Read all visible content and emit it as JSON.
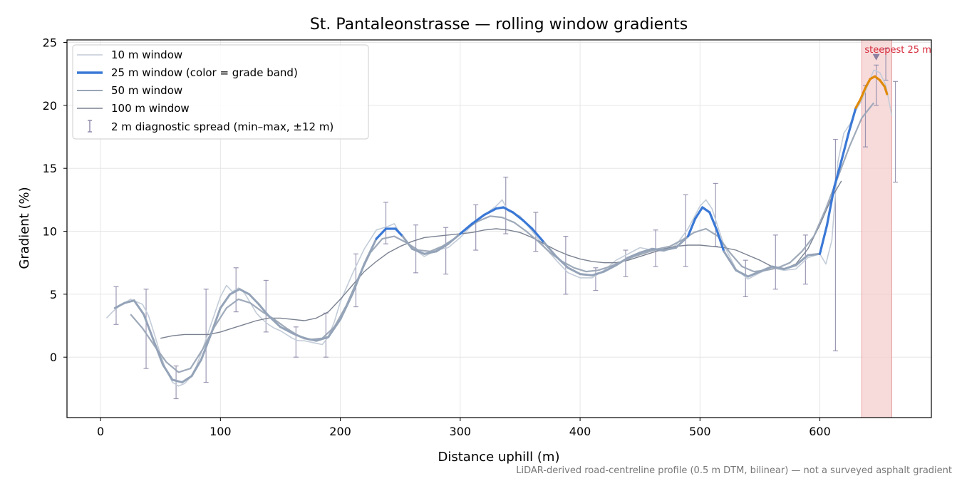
{
  "chart_data": {
    "type": "line",
    "title": "St. Pantaleonstrasse — rolling window gradients",
    "xlabel": "Distance uphill (m)",
    "ylabel": "Gradient (%)",
    "xlim": [
      -28,
      693
    ],
    "ylim": [
      -4.8,
      25.2
    ],
    "xticks": [
      0,
      100,
      200,
      300,
      400,
      500,
      600
    ],
    "yticks": [
      0,
      5,
      10,
      15,
      20,
      25
    ],
    "grid": true,
    "legend_position": "top-left",
    "footnote": "LiDAR-derived road-centreline profile (0.5 m DTM, bilinear) — not a surveyed asphalt gradient",
    "highlight": {
      "x_range": [
        635,
        660
      ],
      "label": "steepest 25 m",
      "marker_x": 647,
      "marker_y": 23.8,
      "color": "#f4cccc"
    },
    "grade_band_colors": {
      "low": "#94a3b8",
      "mid": "#3a78d6",
      "high": "#e08a0b"
    },
    "series": [
      {
        "name": "10 m window",
        "style": "light",
        "color": "#c3ccd8",
        "x": [
          5,
          10,
          15,
          20,
          25,
          30,
          35,
          40,
          45,
          50,
          55,
          60,
          65,
          70,
          75,
          80,
          85,
          90,
          95,
          100,
          105,
          110,
          115,
          120,
          125,
          130,
          135,
          140,
          145,
          150,
          155,
          160,
          165,
          170,
          175,
          180,
          185,
          190,
          195,
          200,
          210,
          220,
          230,
          240,
          245,
          250,
          260,
          270,
          280,
          290,
          300,
          310,
          320,
          330,
          335,
          340,
          350,
          360,
          370,
          380,
          390,
          400,
          410,
          420,
          430,
          440,
          450,
          460,
          470,
          480,
          490,
          500,
          505,
          510,
          520,
          530,
          540,
          550,
          560,
          570,
          580,
          590,
          600,
          605,
          610,
          615,
          620,
          625,
          630,
          635,
          640,
          645,
          650,
          655,
          660
        ],
        "values": [
          3.1,
          3.6,
          4.0,
          4.3,
          4.6,
          4.4,
          4.2,
          3.3,
          1.8,
          0.2,
          -1.1,
          -2.0,
          -2.3,
          -2.1,
          -1.6,
          -0.7,
          0.6,
          2.0,
          3.4,
          4.8,
          5.7,
          5.2,
          5.5,
          5.1,
          4.3,
          3.5,
          3.0,
          2.6,
          2.3,
          2.1,
          1.8,
          1.5,
          1.3,
          1.3,
          1.2,
          1.1,
          1.0,
          1.6,
          2.8,
          4.4,
          6.6,
          8.6,
          10.1,
          10.4,
          10.6,
          9.8,
          8.7,
          8.0,
          8.5,
          8.7,
          9.5,
          10.5,
          11.3,
          12.0,
          12.5,
          11.6,
          11.2,
          10.0,
          8.8,
          7.7,
          6.7,
          6.3,
          6.3,
          6.9,
          7.7,
          8.2,
          8.7,
          8.5,
          8.4,
          8.9,
          10.2,
          12.0,
          12.5,
          11.8,
          8.9,
          7.0,
          6.2,
          6.7,
          7.1,
          6.9,
          7.0,
          7.9,
          8.2,
          7.4,
          9.3,
          15.5,
          17.8,
          18.5,
          19.6,
          20.4,
          21.6,
          22.8,
          22.6,
          21.6,
          19.2
        ]
      },
      {
        "name": "25 m window (color = grade band)",
        "style": "main",
        "color": "#3a78d6",
        "x": [
          12,
          20,
          28,
          36,
          44,
          52,
          60,
          68,
          76,
          84,
          92,
          100,
          108,
          116,
          124,
          132,
          140,
          150,
          160,
          170,
          180,
          190,
          200,
          210,
          220,
          230,
          238,
          246,
          252,
          260,
          270,
          280,
          290,
          300,
          310,
          320,
          330,
          336,
          344,
          352,
          360,
          370,
          380,
          390,
          400,
          410,
          420,
          430,
          440,
          450,
          460,
          470,
          480,
          490,
          496,
          502,
          508,
          514,
          520,
          530,
          540,
          550,
          560,
          570,
          580,
          590,
          600,
          606,
          612,
          618,
          624,
          630,
          634,
          638,
          642,
          646,
          650,
          654,
          656
        ],
        "values": [
          3.9,
          4.3,
          4.5,
          3.4,
          1.4,
          -0.6,
          -1.8,
          -2.0,
          -1.5,
          -0.2,
          1.8,
          3.9,
          5.0,
          5.4,
          5.0,
          4.2,
          3.3,
          2.4,
          1.9,
          1.5,
          1.3,
          1.6,
          3.0,
          5.0,
          7.4,
          9.4,
          10.2,
          10.2,
          9.6,
          8.6,
          8.2,
          8.4,
          9.0,
          9.8,
          10.6,
          11.3,
          11.8,
          11.9,
          11.5,
          10.9,
          10.2,
          9.1,
          8.0,
          7.1,
          6.6,
          6.5,
          6.8,
          7.3,
          7.9,
          8.3,
          8.6,
          8.5,
          8.7,
          9.6,
          11.0,
          11.9,
          11.5,
          10.1,
          8.4,
          6.9,
          6.4,
          6.8,
          7.2,
          7.0,
          7.3,
          8.1,
          8.2,
          10.5,
          13.5,
          15.6,
          17.8,
          19.8,
          20.5,
          21.4,
          22.1,
          22.3,
          22.0,
          21.5,
          20.9
        ]
      },
      {
        "name": "50 m window",
        "style": "medium",
        "color": "#9aa5b6",
        "x": [
          25,
          35,
          45,
          55,
          65,
          75,
          85,
          95,
          105,
          115,
          125,
          135,
          145,
          155,
          165,
          175,
          185,
          195,
          205,
          215,
          225,
          235,
          245,
          255,
          265,
          275,
          285,
          295,
          305,
          315,
          325,
          335,
          345,
          355,
          365,
          375,
          385,
          395,
          405,
          415,
          425,
          435,
          445,
          455,
          465,
          475,
          485,
          495,
          505,
          515,
          525,
          535,
          545,
          555,
          565,
          575,
          585,
          595,
          605,
          615,
          625,
          635,
          645
        ],
        "values": [
          3.4,
          2.3,
          0.9,
          -0.4,
          -1.2,
          -0.9,
          0.6,
          2.4,
          3.9,
          4.6,
          4.3,
          3.6,
          3.0,
          2.3,
          1.7,
          1.4,
          1.5,
          2.4,
          4.1,
          6.3,
          8.3,
          9.4,
          9.6,
          9.1,
          8.5,
          8.4,
          8.8,
          9.4,
          10.2,
          10.8,
          11.2,
          11.1,
          10.7,
          10.0,
          9.2,
          8.3,
          7.6,
          7.1,
          6.8,
          6.9,
          7.2,
          7.6,
          8.0,
          8.3,
          8.6,
          8.8,
          9.3,
          9.9,
          10.2,
          9.6,
          8.3,
          7.2,
          6.8,
          6.9,
          7.1,
          7.5,
          8.4,
          9.6,
          11.8,
          14.3,
          16.8,
          19.0,
          20.2
        ]
      },
      {
        "name": "100 m window",
        "style": "dark",
        "color": "#7a8291",
        "x": [
          50,
          60,
          70,
          80,
          90,
          100,
          110,
          120,
          130,
          140,
          150,
          160,
          170,
          180,
          190,
          200,
          210,
          220,
          230,
          240,
          250,
          260,
          270,
          280,
          290,
          300,
          310,
          320,
          330,
          340,
          350,
          360,
          370,
          380,
          390,
          400,
          410,
          420,
          430,
          440,
          450,
          460,
          470,
          480,
          490,
          500,
          510,
          520,
          530,
          540,
          550,
          560,
          570,
          580,
          590,
          600,
          610,
          618
        ],
        "values": [
          1.5,
          1.7,
          1.8,
          1.8,
          1.8,
          2.0,
          2.3,
          2.6,
          2.9,
          3.1,
          3.1,
          3.0,
          2.9,
          3.1,
          3.6,
          4.6,
          5.7,
          6.8,
          7.6,
          8.3,
          8.8,
          9.2,
          9.5,
          9.6,
          9.7,
          9.8,
          9.9,
          10.1,
          10.2,
          10.1,
          9.9,
          9.5,
          9.0,
          8.5,
          8.1,
          7.8,
          7.6,
          7.5,
          7.5,
          7.7,
          8.0,
          8.3,
          8.6,
          8.8,
          8.9,
          8.9,
          8.8,
          8.7,
          8.5,
          8.1,
          7.7,
          7.2,
          7.0,
          7.4,
          8.6,
          10.5,
          12.7,
          14.0
        ]
      }
    ],
    "error_bars": {
      "name": "2 m diagnostic spread (min–max, ±12 m)",
      "color": "#8b87a8",
      "x": [
        13,
        38,
        63,
        88,
        113,
        138,
        163,
        188,
        213,
        238,
        263,
        288,
        313,
        338,
        363,
        388,
        413,
        438,
        463,
        488,
        513,
        538,
        563,
        588,
        613,
        638,
        647,
        655,
        663
      ],
      "lower": [
        2.6,
        -0.9,
        -3.3,
        -2.0,
        3.6,
        2.0,
        0.0,
        0.0,
        4.0,
        9.0,
        6.7,
        6.6,
        8.5,
        9.8,
        8.4,
        5.0,
        5.3,
        6.4,
        7.2,
        7.2,
        8.8,
        4.8,
        5.4,
        5.8,
        0.5,
        16.7,
        20.0,
        22.0,
        13.9
      ],
      "upper": [
        5.6,
        5.4,
        -0.7,
        5.4,
        7.1,
        6.1,
        2.4,
        3.5,
        8.2,
        12.3,
        10.5,
        10.3,
        12.1,
        14.3,
        11.5,
        9.6,
        7.1,
        8.5,
        10.1,
        12.9,
        13.8,
        7.7,
        9.7,
        9.7,
        17.3,
        21.6,
        23.2,
        24.5,
        21.9
      ]
    }
  }
}
